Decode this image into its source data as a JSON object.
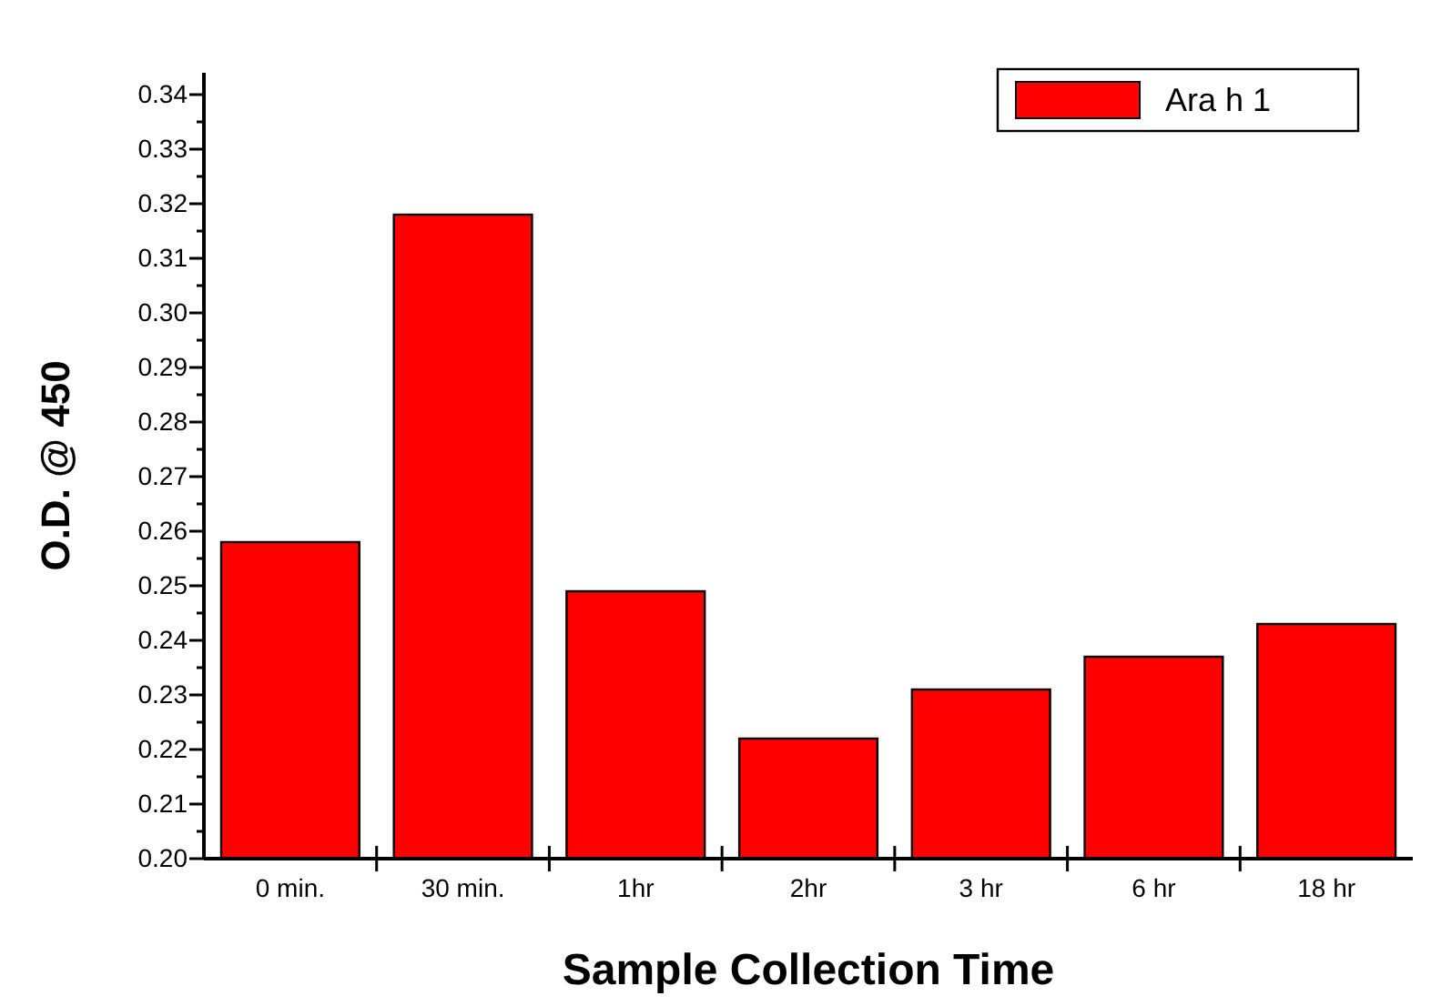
{
  "chart_data": {
    "type": "bar",
    "xlabel": "Sample Collection Time",
    "ylabel": "O.D. @ 450",
    "categories": [
      "0 min.",
      "30 min.",
      "1hr",
      "2hr",
      "3 hr",
      "6 hr",
      "18 hr"
    ],
    "series": [
      {
        "name": "Ara h 1",
        "color": "#ff0000",
        "values": [
          0.258,
          0.318,
          0.249,
          0.222,
          0.231,
          0.237,
          0.243
        ]
      }
    ],
    "ylim": [
      0.2,
      0.344
    ],
    "yticks": [
      {
        "value": 0.2,
        "label": "0.20"
      },
      {
        "value": 0.205,
        "label": null
      },
      {
        "value": 0.21,
        "label": "0.21"
      },
      {
        "value": 0.215,
        "label": null
      },
      {
        "value": 0.22,
        "label": "0.22"
      },
      {
        "value": 0.225,
        "label": null
      },
      {
        "value": 0.23,
        "label": "0.23"
      },
      {
        "value": 0.235,
        "label": null
      },
      {
        "value": 0.24,
        "label": "0.24"
      },
      {
        "value": 0.245,
        "label": null
      },
      {
        "value": 0.25,
        "label": "0.25"
      },
      {
        "value": 0.255,
        "label": null
      },
      {
        "value": 0.26,
        "label": "0.26"
      },
      {
        "value": 0.265,
        "label": null
      },
      {
        "value": 0.27,
        "label": "0.27"
      },
      {
        "value": 0.275,
        "label": null
      },
      {
        "value": 0.28,
        "label": "0.28"
      },
      {
        "value": 0.285,
        "label": null
      },
      {
        "value": 0.29,
        "label": "0.29"
      },
      {
        "value": 0.295,
        "label": null
      },
      {
        "value": 0.3,
        "label": "0.30"
      },
      {
        "value": 0.305,
        "label": null
      },
      {
        "value": 0.31,
        "label": "0.31"
      },
      {
        "value": 0.315,
        "label": null
      },
      {
        "value": 0.32,
        "label": "0.32"
      },
      {
        "value": 0.325,
        "label": null
      },
      {
        "value": 0.33,
        "label": "0.33"
      },
      {
        "value": 0.335,
        "label": null
      },
      {
        "value": 0.34,
        "label": "0.34"
      }
    ],
    "legend": "top right",
    "grid": false
  }
}
